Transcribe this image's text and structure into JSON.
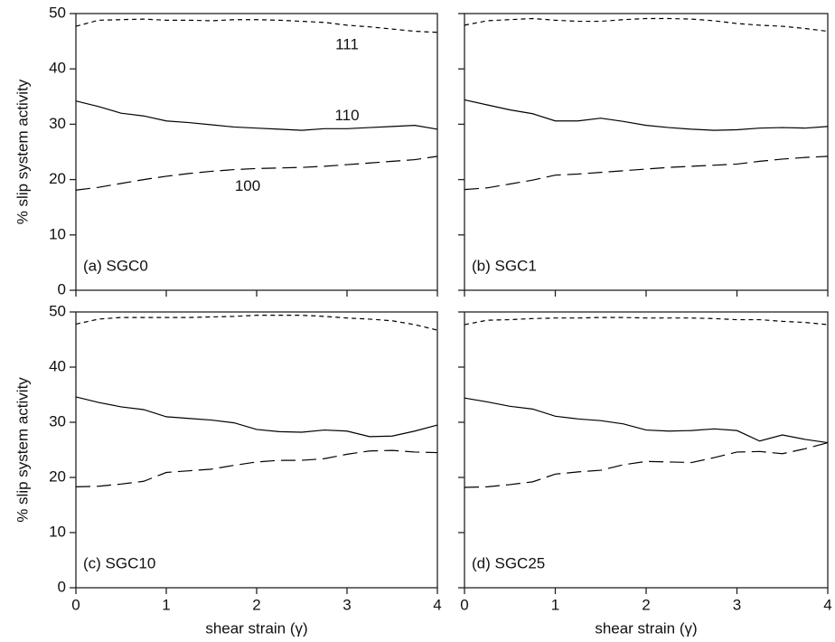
{
  "chart_data": [
    {
      "type": "line",
      "panel_label": "(a) SGC0",
      "ylabel": "% slip system activity",
      "x": [
        0,
        0.25,
        0.5,
        0.75,
        1,
        1.25,
        1.5,
        1.75,
        2,
        2.25,
        2.5,
        2.75,
        3,
        3.25,
        3.5,
        3.75,
        4
      ],
      "xlim": [
        0,
        4
      ],
      "xticks": [
        0,
        1,
        2,
        3,
        4
      ],
      "show_xtick_labels": false,
      "ylim": [
        0,
        50
      ],
      "yticks": [
        0,
        10,
        20,
        30,
        40,
        50
      ],
      "show_ytick_labels": true,
      "series": [
        {
          "name": "111",
          "color": "#000000",
          "dash": "short",
          "values": [
            47.7,
            48.8,
            48.9,
            49,
            48.8,
            48.8,
            48.7,
            48.9,
            48.9,
            48.8,
            48.6,
            48.4,
            47.9,
            47.6,
            47.2,
            46.8,
            46.6
          ]
        },
        {
          "name": "110",
          "color": "#000000",
          "dash": "solid",
          "values": [
            34.2,
            33.2,
            32,
            31.5,
            30.6,
            30.3,
            29.9,
            29.5,
            29.3,
            29.1,
            28.9,
            29.2,
            29.2,
            29.4,
            29.6,
            29.8,
            29.1
          ]
        },
        {
          "name": "100",
          "color": "#000000",
          "dash": "long",
          "values": [
            18.1,
            18.6,
            19.3,
            20,
            20.6,
            21.1,
            21.5,
            21.8,
            22,
            22.1,
            22.2,
            22.4,
            22.7,
            23,
            23.3,
            23.6,
            24.2
          ]
        }
      ]
    },
    {
      "type": "line",
      "panel_label": "(b) SGC1",
      "x": [
        0,
        0.25,
        0.5,
        0.75,
        1,
        1.25,
        1.5,
        1.75,
        2,
        2.25,
        2.5,
        2.75,
        3,
        3.25,
        3.5,
        3.75,
        4
      ],
      "xlim": [
        0,
        4
      ],
      "xticks": [
        0,
        1,
        2,
        3,
        4
      ],
      "show_xtick_labels": false,
      "ylim": [
        0,
        50
      ],
      "yticks": [
        0,
        10,
        20,
        30,
        40,
        50
      ],
      "show_ytick_labels": false,
      "series": [
        {
          "color": "#000000",
          "dash": "short",
          "values": [
            47.9,
            48.7,
            48.9,
            49.1,
            48.8,
            48.6,
            48.6,
            48.9,
            49.1,
            49.1,
            49,
            48.7,
            48.2,
            47.9,
            47.7,
            47.3,
            46.8
          ]
        },
        {
          "color": "#000000",
          "dash": "solid",
          "values": [
            34.4,
            33.5,
            32.6,
            31.9,
            30.6,
            30.6,
            31.1,
            30.5,
            29.8,
            29.4,
            29.1,
            28.9,
            29,
            29.3,
            29.4,
            29.3,
            29.6
          ]
        },
        {
          "color": "#000000",
          "dash": "long",
          "values": [
            18.2,
            18.5,
            19.2,
            19.9,
            20.8,
            21,
            21.3,
            21.6,
            21.9,
            22.2,
            22.4,
            22.6,
            22.8,
            23.3,
            23.7,
            24,
            24.2
          ]
        }
      ]
    },
    {
      "type": "line",
      "panel_label": "(c) SGC10",
      "ylabel": "% slip system activity",
      "xlabel": "shear strain (γ)",
      "x": [
        0,
        0.25,
        0.5,
        0.75,
        1,
        1.25,
        1.5,
        1.75,
        2,
        2.25,
        2.5,
        2.75,
        3,
        3.25,
        3.5,
        3.75,
        4
      ],
      "xlim": [
        0,
        4
      ],
      "xticks": [
        0,
        1,
        2,
        3,
        4
      ],
      "show_xtick_labels": true,
      "ylim": [
        0,
        50
      ],
      "yticks": [
        0,
        10,
        20,
        30,
        40,
        50
      ],
      "show_ytick_labels": true,
      "series": [
        {
          "color": "#000000",
          "dash": "short",
          "values": [
            47.8,
            48.7,
            49,
            49,
            49,
            49,
            49.1,
            49.2,
            49.4,
            49.4,
            49.4,
            49.2,
            48.9,
            48.7,
            48.4,
            47.7,
            46.7
          ]
        },
        {
          "color": "#000000",
          "dash": "solid",
          "values": [
            34.6,
            33.6,
            32.8,
            32.3,
            31,
            30.7,
            30.4,
            29.9,
            28.7,
            28.3,
            28.2,
            28.6,
            28.4,
            27.4,
            27.5,
            28.4,
            29.5
          ]
        },
        {
          "color": "#000000",
          "dash": "long",
          "values": [
            18.3,
            18.4,
            18.8,
            19.3,
            20.9,
            21.2,
            21.5,
            22.2,
            22.8,
            23.1,
            23.1,
            23.4,
            24.2,
            24.8,
            24.9,
            24.6,
            24.5
          ]
        }
      ]
    },
    {
      "type": "line",
      "panel_label": "(d) SGC25",
      "xlabel": "shear strain (γ)",
      "x": [
        0,
        0.25,
        0.5,
        0.75,
        1,
        1.25,
        1.5,
        1.75,
        2,
        2.25,
        2.5,
        2.75,
        3,
        3.25,
        3.5,
        3.75,
        4
      ],
      "xlim": [
        0,
        4
      ],
      "xticks": [
        0,
        1,
        2,
        3,
        4
      ],
      "show_xtick_labels": true,
      "ylim": [
        0,
        50
      ],
      "yticks": [
        0,
        10,
        20,
        30,
        40,
        50
      ],
      "show_ytick_labels": false,
      "series": [
        {
          "color": "#000000",
          "dash": "short",
          "values": [
            47.7,
            48.5,
            48.6,
            48.8,
            48.9,
            48.9,
            49,
            49,
            48.9,
            48.9,
            48.9,
            48.8,
            48.6,
            48.6,
            48.3,
            48.1,
            47.7
          ]
        },
        {
          "color": "#000000",
          "dash": "solid",
          "values": [
            34.4,
            33.7,
            32.9,
            32.4,
            31.1,
            30.6,
            30.3,
            29.7,
            28.6,
            28.4,
            28.5,
            28.8,
            28.5,
            26.6,
            27.7,
            26.9,
            26.3
          ]
        },
        {
          "color": "#000000",
          "dash": "long",
          "values": [
            18.2,
            18.3,
            18.7,
            19.2,
            20.6,
            21,
            21.3,
            22.3,
            22.9,
            22.8,
            22.7,
            23.6,
            24.6,
            24.7,
            24.3,
            25.2,
            26.3
          ]
        }
      ]
    }
  ]
}
